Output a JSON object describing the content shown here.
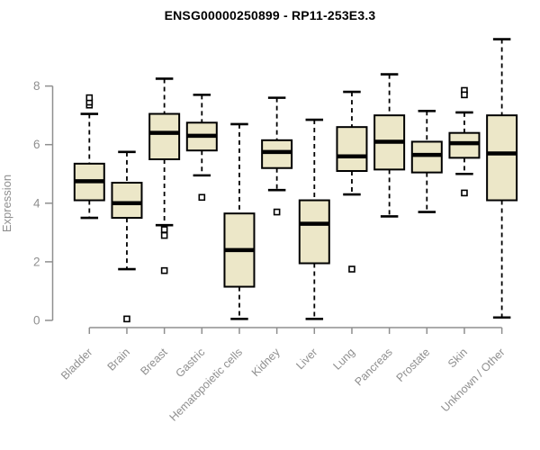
{
  "chart_data": {
    "type": "boxplot",
    "title": "ENSG00000250899 - RP11-253E3.3",
    "ylabel": "Expression",
    "xlabel": "",
    "ylim": [
      0,
      8
    ],
    "yticks": [
      0,
      2,
      4,
      6,
      8
    ],
    "grid": false,
    "legend": "none",
    "x_label_rotation_deg": 45,
    "categories": [
      "Bladder",
      "Brain",
      "Breast",
      "Gastric",
      "Hematopoietic cells",
      "Kidney",
      "Liver",
      "Lung",
      "Pancreas",
      "Prostate",
      "Skin",
      "Unknown / Other"
    ],
    "series": [
      {
        "category": "Bladder",
        "whisker_low": 3.5,
        "q1": 4.1,
        "median": 4.75,
        "q3": 5.35,
        "whisker_high": 7.05,
        "outliers": [
          7.35,
          7.45,
          7.6
        ]
      },
      {
        "category": "Brain",
        "whisker_low": 1.75,
        "q1": 3.5,
        "median": 4.0,
        "q3": 4.7,
        "whisker_high": 5.75,
        "outliers": [
          0.05
        ]
      },
      {
        "category": "Breast",
        "whisker_low": 3.25,
        "q1": 5.5,
        "median": 6.4,
        "q3": 7.05,
        "whisker_high": 8.25,
        "outliers": [
          3.1,
          2.9,
          1.7
        ]
      },
      {
        "category": "Gastric",
        "whisker_low": 4.95,
        "q1": 5.8,
        "median": 6.3,
        "q3": 6.75,
        "whisker_high": 7.7,
        "outliers": [
          4.2
        ]
      },
      {
        "category": "Hematopoietic cells",
        "whisker_low": 0.05,
        "q1": 1.15,
        "median": 2.4,
        "q3": 3.65,
        "whisker_high": 6.7,
        "outliers": []
      },
      {
        "category": "Kidney",
        "whisker_low": 4.45,
        "q1": 5.2,
        "median": 5.75,
        "q3": 6.15,
        "whisker_high": 7.6,
        "outliers": [
          3.7
        ]
      },
      {
        "category": "Liver",
        "whisker_low": 0.05,
        "q1": 1.95,
        "median": 3.3,
        "q3": 4.1,
        "whisker_high": 6.85,
        "outliers": []
      },
      {
        "category": "Lung",
        "whisker_low": 4.3,
        "q1": 5.1,
        "median": 5.6,
        "q3": 6.6,
        "whisker_high": 7.8,
        "outliers": [
          1.75
        ]
      },
      {
        "category": "Pancreas",
        "whisker_low": 3.55,
        "q1": 5.15,
        "median": 6.1,
        "q3": 7.0,
        "whisker_high": 8.4,
        "outliers": []
      },
      {
        "category": "Prostate",
        "whisker_low": 3.7,
        "q1": 5.05,
        "median": 5.65,
        "q3": 6.1,
        "whisker_high": 7.15,
        "outliers": []
      },
      {
        "category": "Skin",
        "whisker_low": 5.0,
        "q1": 5.55,
        "median": 6.05,
        "q3": 6.4,
        "whisker_high": 7.1,
        "outliers": [
          7.85,
          7.7,
          4.35
        ]
      },
      {
        "category": "Unknown / Other",
        "whisker_low": 0.1,
        "q1": 4.1,
        "median": 5.7,
        "q3": 7.0,
        "whisker_high": 9.6,
        "outliers": []
      }
    ],
    "colors": {
      "box_fill": "#ECE7C8",
      "box_stroke": "#000000",
      "median": "#000000",
      "whisker": "#000000",
      "outlier_stroke": "#000000",
      "axis": "#8f8f8f",
      "tick_label": "#8f8f8f",
      "title": "#000000",
      "background": "#ffffff"
    }
  }
}
